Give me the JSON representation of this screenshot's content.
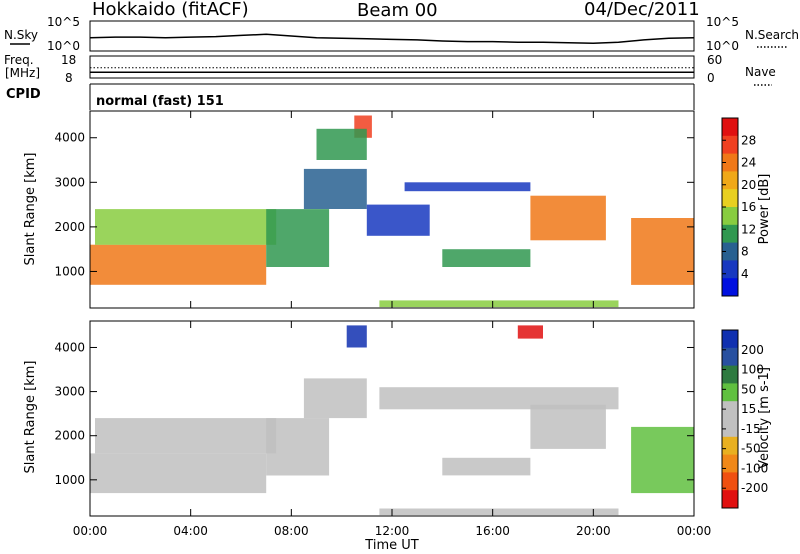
{
  "header": {
    "station": "Hokkaido (fitACF)",
    "beam": "Beam 00",
    "date": "04/Dec/2011"
  },
  "time_axis": {
    "label": "Time UT",
    "ticks": [
      "00:00",
      "04:00",
      "08:00",
      "12:00",
      "16:00",
      "20:00",
      "00:00"
    ],
    "range_hours": [
      0,
      24
    ]
  },
  "noise_panel": {
    "left_label": "N.Sky",
    "right_label": "N.Search",
    "left_ticks": [
      "10^5",
      "10^0"
    ],
    "right_ticks": [
      "10^5",
      "10^0"
    ]
  },
  "freq_panel": {
    "left_label_1": "Freq.",
    "left_label_2": "[MHz]",
    "right_label": "Nave",
    "left_ticks": [
      "18",
      "8"
    ],
    "right_ticks": [
      "60",
      "0"
    ]
  },
  "cpid_panel": {
    "label": "CPID",
    "text": "normal (fast) 151"
  },
  "power_colorbar": {
    "label": "Power [dB]",
    "ticks": [
      "28",
      "24",
      "20",
      "16",
      "12",
      "8",
      "4"
    ],
    "colors": [
      "#e01010",
      "#f04020",
      "#f07818",
      "#f0a818",
      "#e8d020",
      "#88cc40",
      "#309850",
      "#286090",
      "#1838c0",
      "#0010e0"
    ]
  },
  "velocity_colorbar": {
    "label": "Velocity [m s-1]",
    "ticks": [
      "200",
      "100",
      "50",
      "15",
      "-15",
      "-50",
      "-100",
      "-200"
    ],
    "colors": [
      "#1030b0",
      "#2850a0",
      "#2e7a40",
      "#60c040",
      "#c0c0c0",
      "#c0c0c0",
      "#e8b020",
      "#f08818",
      "#f05010",
      "#e01010"
    ]
  },
  "chart_data": [
    {
      "type": "line",
      "panel": "noise",
      "series": [
        {
          "name": "N.Sky",
          "x": [
            0,
            1,
            2,
            3,
            4,
            5,
            6,
            7,
            8,
            9,
            10,
            11,
            12,
            13,
            14,
            15,
            16,
            17,
            18,
            19,
            20,
            21,
            22,
            23,
            24
          ],
          "y_log": [
            2.2,
            2.3,
            2.3,
            2.2,
            2.3,
            2.4,
            2.6,
            2.8,
            2.5,
            2.2,
            2.1,
            2.0,
            1.9,
            1.8,
            1.6,
            1.5,
            1.5,
            1.4,
            1.4,
            1.3,
            1.2,
            1.4,
            1.8,
            2.1,
            2.2
          ]
        }
      ],
      "ylim_log": [
        0,
        5
      ]
    },
    {
      "type": "line",
      "panel": "frequency",
      "series": [
        {
          "name": "Freq. [MHz]",
          "x": [
            0,
            24
          ],
          "y": [
            10.4,
            10.4
          ]
        },
        {
          "name": "Nave",
          "x": [
            0,
            24
          ],
          "y": [
            28,
            28
          ]
        }
      ],
      "ylim_left": [
        8,
        18
      ],
      "ylim_right": [
        0,
        60
      ]
    },
    {
      "type": "heatmap",
      "panel": "power",
      "title": "Power [dB]",
      "ylabel": "Slant Range [km]",
      "xlabel": "Time UT",
      "xlim": [
        0,
        24
      ],
      "ylim": [
        180,
        4600
      ],
      "yticks": [
        1000,
        2000,
        3000,
        4000
      ],
      "clim": [
        0,
        32
      ],
      "regions": [
        {
          "t": [
            0.0,
            7.0
          ],
          "r": [
            700,
            1600
          ],
          "value": 24
        },
        {
          "t": [
            0.2,
            7.4
          ],
          "r": [
            1600,
            2400
          ],
          "value": 14
        },
        {
          "t": [
            7.0,
            9.5
          ],
          "r": [
            1100,
            2400
          ],
          "value": 10
        },
        {
          "t": [
            8.5,
            11.0
          ],
          "r": [
            2400,
            3300
          ],
          "value": 8
        },
        {
          "t": [
            11.0,
            13.5
          ],
          "r": [
            1800,
            2500
          ],
          "value": 6
        },
        {
          "t": [
            12.5,
            17.5
          ],
          "r": [
            2800,
            3000
          ],
          "value": 6
        },
        {
          "t": [
            14.0,
            17.5
          ],
          "r": [
            1100,
            1500
          ],
          "value": 10
        },
        {
          "t": [
            17.5,
            20.5
          ],
          "r": [
            1700,
            2700
          ],
          "value": 24
        },
        {
          "t": [
            21.5,
            24.0
          ],
          "r": [
            700,
            2200
          ],
          "value": 24
        },
        {
          "t": [
            10.5,
            11.2
          ],
          "r": [
            4000,
            4500
          ],
          "value": 28
        },
        {
          "t": [
            9.0,
            11.0
          ],
          "r": [
            3500,
            4200
          ],
          "value": 10
        },
        {
          "t": [
            11.5,
            21.0
          ],
          "r": [
            200,
            350
          ],
          "value": 16
        }
      ]
    },
    {
      "type": "heatmap",
      "panel": "velocity",
      "title": "Velocity [m s-1]",
      "ylabel": "Slant Range [km]",
      "xlabel": "Time UT",
      "xlim": [
        0,
        24
      ],
      "ylim": [
        180,
        4600
      ],
      "yticks": [
        1000,
        2000,
        3000,
        4000
      ],
      "clim": [
        -250,
        250
      ],
      "regions": [
        {
          "t": [
            0.0,
            7.0
          ],
          "r": [
            700,
            1600
          ],
          "value": 0
        },
        {
          "t": [
            0.2,
            7.4
          ],
          "r": [
            1600,
            2400
          ],
          "value": -20
        },
        {
          "t": [
            7.0,
            9.5
          ],
          "r": [
            1100,
            2400
          ],
          "value": 0
        },
        {
          "t": [
            8.5,
            11.0
          ],
          "r": [
            2400,
            3300
          ],
          "value": -30
        },
        {
          "t": [
            10.2,
            11.0
          ],
          "r": [
            4000,
            4500
          ],
          "value": 220
        },
        {
          "t": [
            11.5,
            21.0
          ],
          "r": [
            2600,
            3100
          ],
          "value": -40
        },
        {
          "t": [
            14.0,
            17.5
          ],
          "r": [
            1100,
            1500
          ],
          "value": 0
        },
        {
          "t": [
            17.5,
            20.5
          ],
          "r": [
            1700,
            2700
          ],
          "value": 0
        },
        {
          "t": [
            21.5,
            24.0
          ],
          "r": [
            700,
            2200
          ],
          "value": 60
        },
        {
          "t": [
            17.0,
            18.0
          ],
          "r": [
            4200,
            4500
          ],
          "value": -220
        },
        {
          "t": [
            11.5,
            21.0
          ],
          "r": [
            200,
            350
          ],
          "value": -40
        }
      ]
    }
  ]
}
